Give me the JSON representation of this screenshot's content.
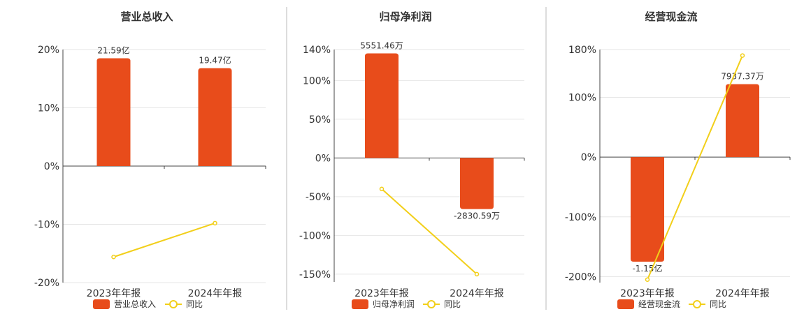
{
  "colors": {
    "bar": "#E84C1B",
    "line": "#F2CF1A"
  },
  "chart_data": [
    {
      "type": "bar",
      "title": "营业总收入",
      "categories": [
        "2023年年报",
        "2024年年报"
      ],
      "yticks": [
        "20%",
        "10%",
        "0%",
        "-10%",
        "-20%"
      ],
      "ylim": [
        -20,
        20
      ],
      "series": [
        {
          "name": "营业总收入",
          "type": "bar",
          "values": [
            18.5,
            16.8
          ],
          "labels": [
            "21.59亿",
            "19.47亿"
          ]
        },
        {
          "name": "同比",
          "type": "line",
          "values": [
            -15.6,
            -9.8
          ]
        }
      ]
    },
    {
      "type": "bar",
      "title": "归母净利润",
      "categories": [
        "2023年年报",
        "2024年年报"
      ],
      "yticks": [
        "140%",
        "100%",
        "50%",
        "0%",
        "-50%",
        "-100%",
        "-150%"
      ],
      "ylim": [
        -160,
        140
      ],
      "series": [
        {
          "name": "归母净利润",
          "type": "bar",
          "values": [
            135,
            -66
          ],
          "labels": [
            "5551.46万",
            "-2830.59万"
          ]
        },
        {
          "name": "同比",
          "type": "line",
          "values": [
            -40,
            -150
          ]
        }
      ]
    },
    {
      "type": "bar",
      "title": "经营现金流",
      "categories": [
        "2023年年报",
        "2024年年报"
      ],
      "yticks": [
        "180%",
        "100%",
        "0%",
        "-100%",
        "-200%"
      ],
      "ylim": [
        -210,
        180
      ],
      "series": [
        {
          "name": "经营现金流",
          "type": "bar",
          "values": [
            -175,
            122
          ],
          "labels": [
            "-1.15亿",
            "7937.37万"
          ]
        },
        {
          "name": "同比",
          "type": "line",
          "values": [
            -205,
            170
          ]
        }
      ]
    }
  ]
}
